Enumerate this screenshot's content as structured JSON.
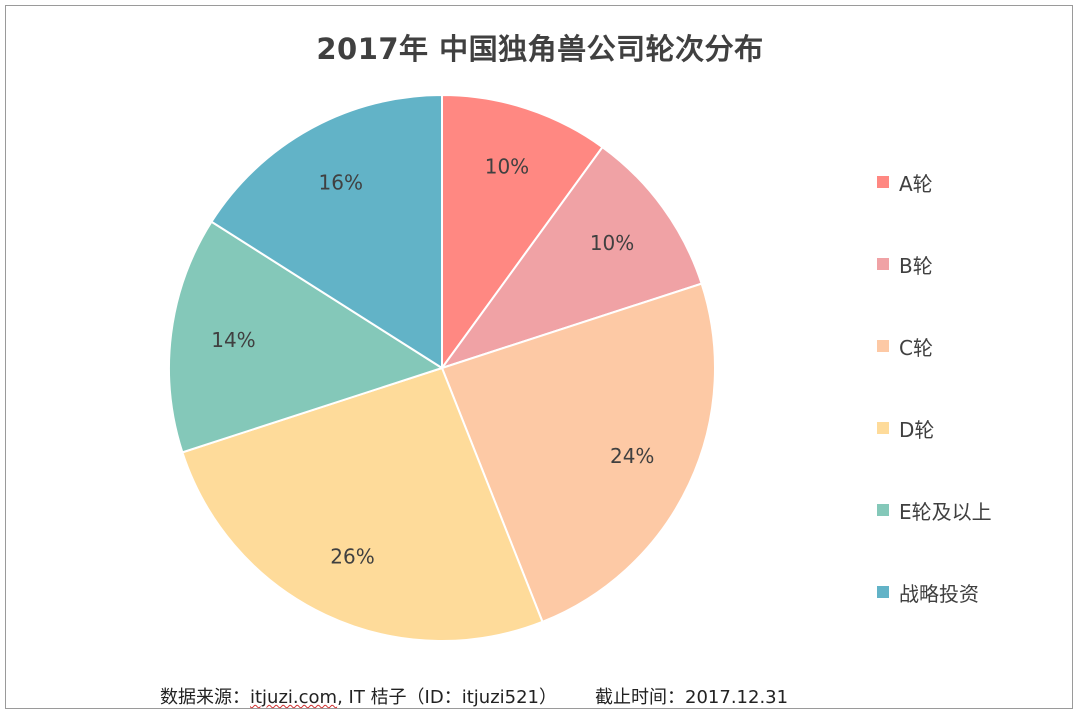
{
  "chart_data": {
    "type": "pie",
    "title": "2017年 中国独角兽公司轮次分布",
    "categories": [
      "A轮",
      "B轮",
      "C轮",
      "D轮",
      "E轮及以上",
      "战略投资"
    ],
    "values": [
      10,
      10,
      24,
      26,
      14,
      16
    ],
    "labels": [
      "10%",
      "10%",
      "24%",
      "26%",
      "14%",
      "16%"
    ],
    "colors": [
      "#FF8882",
      "#F0A2A5",
      "#FDC9A5",
      "#FEDB9A",
      "#84C8B9",
      "#62B3C7"
    ],
    "legend_position": "right"
  },
  "footer": {
    "source_prefix": "数据来源：",
    "source_site": "itjuzi.com",
    "source_rest": ", IT 桔子（ID：itjuzi521）",
    "cutoff": "截止时间：2017.12.31"
  }
}
